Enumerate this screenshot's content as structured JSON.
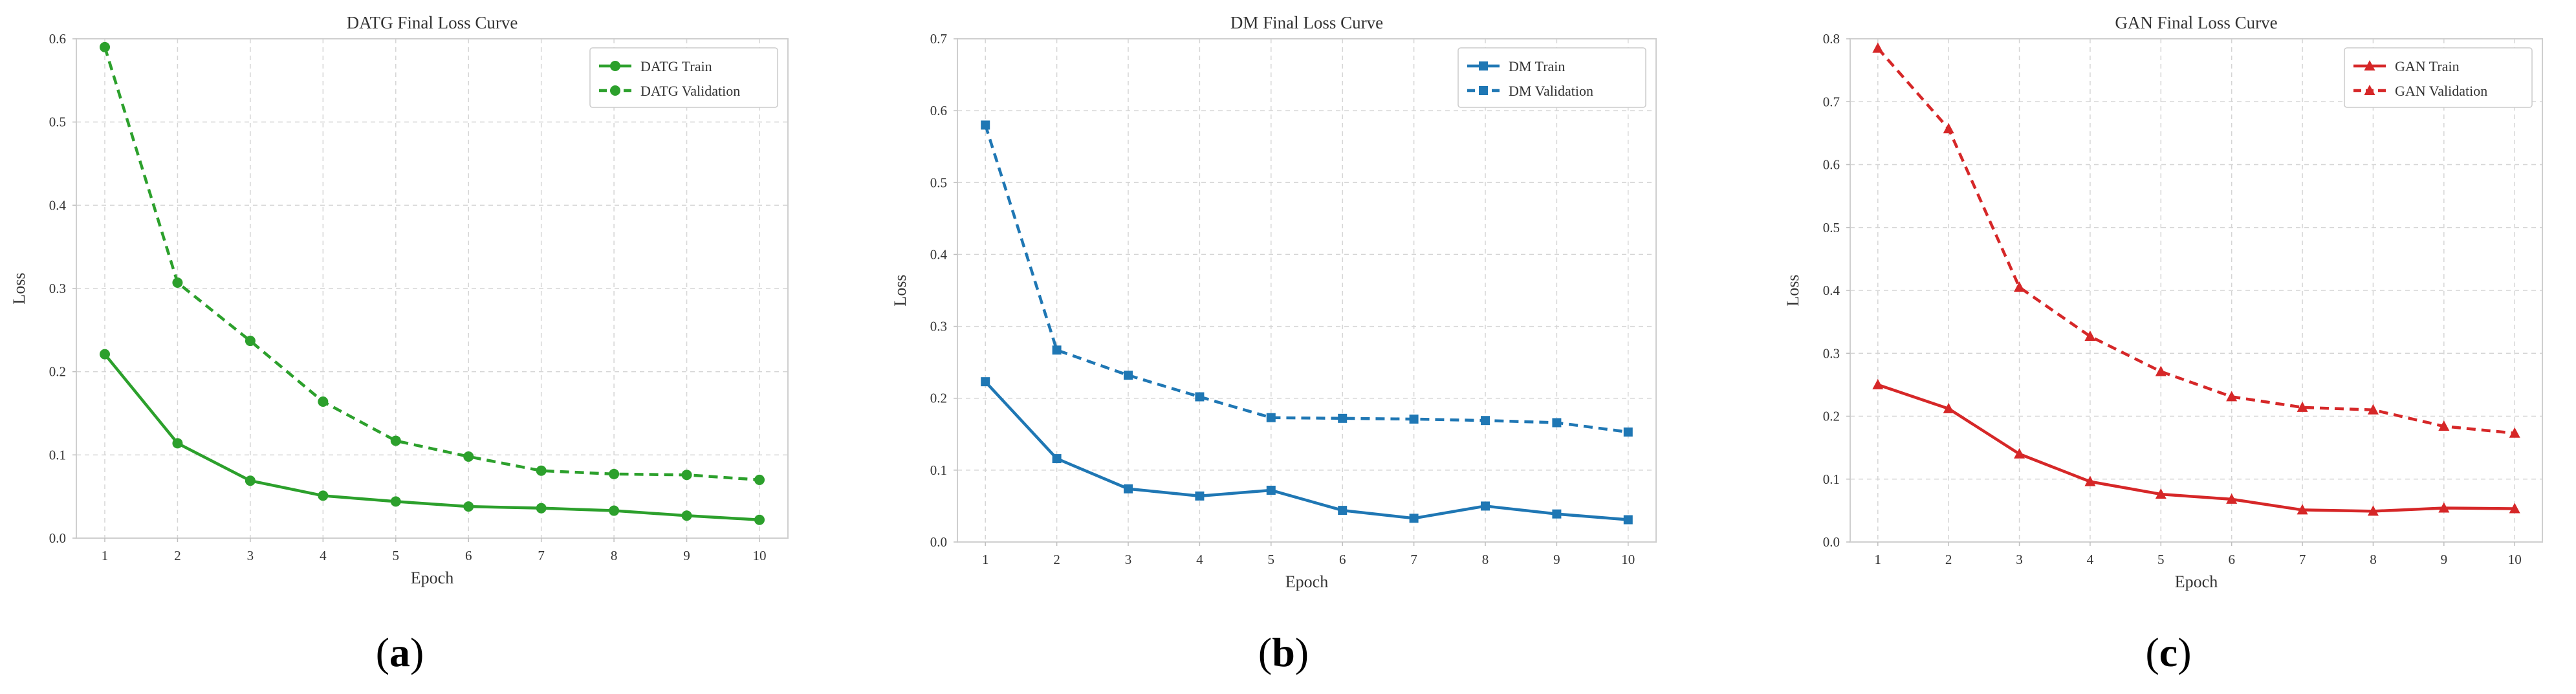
{
  "chart_data": [
    {
      "type": "line",
      "panel_label": "a",
      "title": "DATG Final Loss Curve",
      "xlabel": "Epoch",
      "ylabel": "Loss",
      "x": [
        1,
        2,
        3,
        4,
        5,
        6,
        7,
        8,
        9,
        10
      ],
      "ylim": [
        0,
        0.6
      ],
      "yticks": [
        0.0,
        0.1,
        0.2,
        0.3,
        0.4,
        0.5,
        0.6
      ],
      "grid": true,
      "legend_position": "top-right",
      "color": "#2ca02c",
      "marker": "circle",
      "series": [
        {
          "name": "DATG Train",
          "linestyle": "solid",
          "values": [
            0.221,
            0.114,
            0.069,
            0.051,
            0.044,
            0.038,
            0.036,
            0.033,
            0.027,
            0.022
          ]
        },
        {
          "name": "DATG Validation",
          "linestyle": "dashed",
          "values": [
            0.59,
            0.307,
            0.237,
            0.164,
            0.117,
            0.098,
            0.081,
            0.077,
            0.076,
            0.07
          ]
        }
      ]
    },
    {
      "type": "line",
      "panel_label": "b",
      "title": "DM Final Loss Curve",
      "xlabel": "Epoch",
      "ylabel": "Loss",
      "x": [
        1,
        2,
        3,
        4,
        5,
        6,
        7,
        8,
        9,
        10
      ],
      "ylim": [
        0,
        0.7
      ],
      "yticks": [
        0.0,
        0.1,
        0.2,
        0.3,
        0.4,
        0.5,
        0.6,
        0.7
      ],
      "grid": true,
      "legend_position": "top-right",
      "color": "#1f77b4",
      "marker": "square",
      "series": [
        {
          "name": "DM Train",
          "linestyle": "solid",
          "values": [
            0.223,
            0.116,
            0.074,
            0.064,
            0.072,
            0.044,
            0.033,
            0.05,
            0.039,
            0.031
          ]
        },
        {
          "name": "DM Validation",
          "linestyle": "dashed",
          "values": [
            0.58,
            0.267,
            0.232,
            0.202,
            0.173,
            0.172,
            0.171,
            0.169,
            0.166,
            0.153
          ]
        }
      ]
    },
    {
      "type": "line",
      "panel_label": "c",
      "title": "GAN Final Loss Curve",
      "xlabel": "Epoch",
      "ylabel": "Loss",
      "x": [
        1,
        2,
        3,
        4,
        5,
        6,
        7,
        8,
        9,
        10
      ],
      "ylim": [
        0,
        0.8
      ],
      "yticks": [
        0.0,
        0.1,
        0.2,
        0.3,
        0.4,
        0.5,
        0.6,
        0.7,
        0.8
      ],
      "grid": true,
      "legend_position": "top-right",
      "color": "#d62728",
      "marker": "triangle",
      "series": [
        {
          "name": "GAN Train",
          "linestyle": "solid",
          "values": [
            0.25,
            0.212,
            0.14,
            0.096,
            0.076,
            0.068,
            0.051,
            0.049,
            0.054,
            0.053
          ]
        },
        {
          "name": "GAN Validation",
          "linestyle": "dashed",
          "values": [
            0.785,
            0.657,
            0.405,
            0.327,
            0.271,
            0.231,
            0.214,
            0.21,
            0.184,
            0.173
          ]
        }
      ]
    }
  ]
}
